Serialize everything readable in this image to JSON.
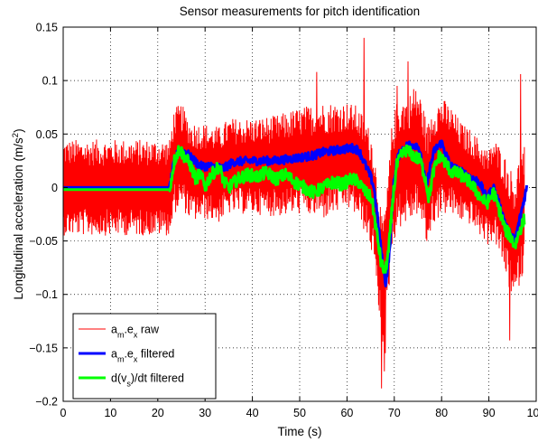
{
  "chart_data": {
    "type": "line",
    "title": "Sensor measurements for pitch identification",
    "xlabel": "Time (s)",
    "ylabel": {
      "base": "Longitudinal acceleration (m/s",
      "sup": "2",
      "tail": ")"
    },
    "xlim": [
      0,
      100
    ],
    "ylim": [
      -0.2,
      0.15
    ],
    "xticks": [
      0,
      10,
      20,
      30,
      40,
      50,
      60,
      70,
      80,
      90,
      100
    ],
    "yticks": [
      -0.2,
      -0.15,
      -0.1,
      -0.05,
      0,
      0.05,
      0.1,
      0.15
    ],
    "xtick_labels": [
      "0",
      "10",
      "20",
      "30",
      "40",
      "50",
      "60",
      "70",
      "80",
      "90",
      "100"
    ],
    "ytick_labels": [
      "−0.2",
      "−0.15",
      "−0.1",
      "−0.05",
      "0",
      "0.05",
      "0.1",
      "0.15"
    ],
    "grid": true,
    "legend_position": "bottom-left",
    "series": [
      {
        "key": "raw",
        "legend": {
          "a": "a",
          "sub1": "m",
          "mid": ".e",
          "sub2": "x",
          "tail": " raw"
        },
        "color": "#ff0000",
        "line_kind": "noise",
        "t_range": [
          0,
          97.5
        ],
        "center": [
          [
            0,
            0.0
          ],
          [
            22.5,
            0.0
          ],
          [
            23.5,
            0.025
          ],
          [
            25,
            0.03
          ],
          [
            27,
            0.015
          ],
          [
            30,
            0.015
          ],
          [
            33,
            0.012
          ],
          [
            35,
            0.02
          ],
          [
            40,
            0.02
          ],
          [
            45,
            0.02
          ],
          [
            50,
            0.025
          ],
          [
            55,
            0.025
          ],
          [
            58,
            0.028
          ],
          [
            60,
            0.03
          ],
          [
            62,
            0.025
          ],
          [
            64,
            0.01
          ],
          [
            65.5,
            -0.01
          ],
          [
            66.5,
            -0.05
          ],
          [
            67.5,
            -0.09
          ],
          [
            68.5,
            -0.06
          ],
          [
            69.5,
            0.0
          ],
          [
            70.5,
            0.02
          ],
          [
            72,
            0.025
          ],
          [
            74,
            0.03
          ],
          [
            75,
            0.035
          ],
          [
            76,
            0.02
          ],
          [
            77,
            0.0
          ],
          [
            78,
            0.02
          ],
          [
            80,
            0.03
          ],
          [
            82,
            0.025
          ],
          [
            84,
            0.015
          ],
          [
            86,
            0.01
          ],
          [
            88,
            0.0
          ],
          [
            90,
            -0.01
          ],
          [
            91,
            0.0
          ],
          [
            93,
            -0.02
          ],
          [
            94.5,
            -0.04
          ],
          [
            95.5,
            -0.05
          ],
          [
            96.5,
            -0.03
          ],
          [
            97.5,
            -0.02
          ]
        ],
        "amplitude": [
          [
            0,
            0.045
          ],
          [
            22.5,
            0.045
          ],
          [
            23,
            0.05
          ],
          [
            30,
            0.045
          ],
          [
            40,
            0.045
          ],
          [
            50,
            0.05
          ],
          [
            55,
            0.055
          ],
          [
            60,
            0.05
          ],
          [
            65,
            0.055
          ],
          [
            70,
            0.06
          ],
          [
            75,
            0.06
          ],
          [
            80,
            0.055
          ],
          [
            85,
            0.045
          ],
          [
            90,
            0.045
          ],
          [
            95,
            0.06
          ],
          [
            97.5,
            0.06
          ]
        ],
        "spikes": [
          [
            53.5,
            0.108
          ],
          [
            63.5,
            0.14
          ],
          [
            67.2,
            -0.188
          ],
          [
            68.0,
            -0.155
          ],
          [
            70.5,
            0.095
          ],
          [
            72.8,
            0.118
          ],
          [
            74.0,
            0.092
          ],
          [
            94.3,
            -0.143
          ],
          [
            96.6,
            0.106
          ],
          [
            67.8,
            -0.172
          ]
        ]
      },
      {
        "key": "filtered",
        "legend": {
          "a": "a",
          "sub1": "m",
          "mid": ".e",
          "sub2": "x",
          "tail": " filtered"
        },
        "color": "#0000ff",
        "line_kind": "smooth",
        "t_range": [
          0,
          98
        ],
        "wiggle": 0.004,
        "center": [
          [
            0,
            0.0
          ],
          [
            22.5,
            0.0
          ],
          [
            23.5,
            0.025
          ],
          [
            24.5,
            0.035
          ],
          [
            26,
            0.033
          ],
          [
            27,
            0.028
          ],
          [
            29,
            0.02
          ],
          [
            31,
            0.02
          ],
          [
            34,
            0.018
          ],
          [
            36,
            0.024
          ],
          [
            40,
            0.025
          ],
          [
            45,
            0.025
          ],
          [
            50,
            0.028
          ],
          [
            53,
            0.03
          ],
          [
            55,
            0.033
          ],
          [
            58,
            0.035
          ],
          [
            61,
            0.037
          ],
          [
            62.5,
            0.035
          ],
          [
            64,
            0.02
          ],
          [
            65,
            0.01
          ],
          [
            65.7,
            0.0
          ],
          [
            66.5,
            -0.03
          ],
          [
            67.5,
            -0.07
          ],
          [
            68.2,
            -0.09
          ],
          [
            69,
            -0.06
          ],
          [
            69.8,
            0.0
          ],
          [
            70.5,
            0.025
          ],
          [
            71.5,
            0.035
          ],
          [
            73,
            0.04
          ],
          [
            75,
            0.04
          ],
          [
            76,
            0.02
          ],
          [
            76.8,
            0.0
          ],
          [
            77.5,
            0.018
          ],
          [
            78.5,
            0.035
          ],
          [
            80,
            0.042
          ],
          [
            81,
            0.03
          ],
          [
            82,
            0.02
          ],
          [
            84,
            0.015
          ],
          [
            86,
            0.01
          ],
          [
            88,
            0.005
          ],
          [
            89.5,
            -0.01
          ],
          [
            91,
            0.0
          ],
          [
            92.5,
            -0.02
          ],
          [
            94,
            -0.04
          ],
          [
            95.5,
            -0.05
          ],
          [
            96.5,
            -0.03
          ],
          [
            97.5,
            -0.01
          ],
          [
            98,
            0.0
          ]
        ]
      },
      {
        "key": "derivative",
        "legend": {
          "a": "d(v",
          "sub1": "s",
          "mid": ")/dt filtered",
          "sub2": "",
          "tail": ""
        },
        "color": "#00ff00",
        "line_kind": "smooth",
        "t_range": [
          0,
          97.5
        ],
        "wiggle": 0.006,
        "center": [
          [
            0,
            -0.002
          ],
          [
            22.5,
            -0.002
          ],
          [
            23.5,
            0.025
          ],
          [
            24.5,
            0.036
          ],
          [
            25.5,
            0.03
          ],
          [
            27,
            0.02
          ],
          [
            28,
            0.008
          ],
          [
            29,
            0.013
          ],
          [
            30,
            0.0
          ],
          [
            31,
            0.01
          ],
          [
            33,
            0.02
          ],
          [
            34,
            0.005
          ],
          [
            35,
            0.0
          ],
          [
            37,
            0.008
          ],
          [
            39,
            0.012
          ],
          [
            41,
            0.01
          ],
          [
            43,
            0.014
          ],
          [
            45,
            0.008
          ],
          [
            47,
            0.012
          ],
          [
            49,
            0.005
          ],
          [
            51,
            0.0
          ],
          [
            53,
            -0.005
          ],
          [
            55,
            0.0
          ],
          [
            57,
            0.005
          ],
          [
            59,
            0.003
          ],
          [
            61,
            0.008
          ],
          [
            62.5,
            0.005
          ],
          [
            64,
            -0.005
          ],
          [
            65.2,
            -0.01
          ],
          [
            66.2,
            -0.04
          ],
          [
            67.2,
            -0.07
          ],
          [
            68,
            -0.08
          ],
          [
            68.8,
            -0.06
          ],
          [
            69.7,
            -0.01
          ],
          [
            70.5,
            0.02
          ],
          [
            71.5,
            0.03
          ],
          [
            72.5,
            0.035
          ],
          [
            74,
            0.03
          ],
          [
            75.5,
            0.025
          ],
          [
            76.5,
            0.01
          ],
          [
            77.3,
            -0.01
          ],
          [
            78.3,
            0.015
          ],
          [
            79.5,
            0.03
          ],
          [
            80.5,
            0.025
          ],
          [
            82,
            0.015
          ],
          [
            84,
            0.012
          ],
          [
            86,
            0.005
          ],
          [
            88,
            -0.008
          ],
          [
            89.5,
            -0.015
          ],
          [
            91,
            -0.005
          ],
          [
            92.5,
            -0.025
          ],
          [
            93.5,
            -0.04
          ],
          [
            94.5,
            -0.045
          ],
          [
            95.5,
            -0.055
          ],
          [
            96.5,
            -0.04
          ],
          [
            97.5,
            -0.03
          ]
        ]
      }
    ]
  }
}
